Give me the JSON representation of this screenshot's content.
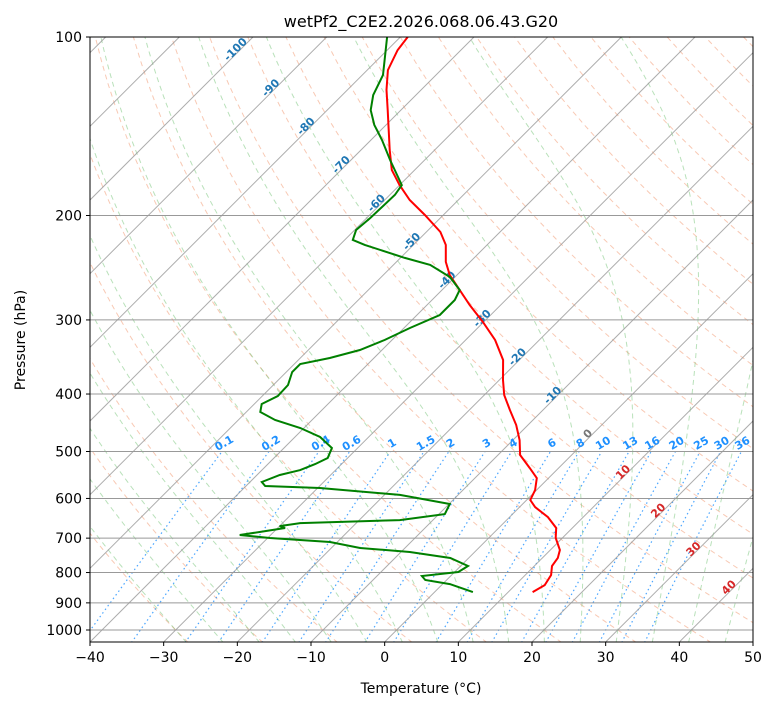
{
  "chart_data": {
    "type": "line",
    "title": "wetPf2_C2E2.2026.068.06.43.G20",
    "xlabel": "Temperature (°C)",
    "ylabel": "Pressure (hPa)",
    "xlim": [
      -40,
      50
    ],
    "ylim": [
      1047,
      100
    ],
    "x_ticks": [
      "−40",
      "−30",
      "−20",
      "−10",
      "0",
      "10",
      "20",
      "30",
      "40",
      "50"
    ],
    "x_tick_values": [
      -40,
      -30,
      -20,
      -10,
      0,
      10,
      20,
      30,
      40,
      50
    ],
    "y_ticks": [
      "100",
      "200",
      "300",
      "400",
      "500",
      "600",
      "700",
      "800",
      "900",
      "1000"
    ],
    "y_tick_values": [
      100,
      200,
      300,
      400,
      500,
      600,
      700,
      800,
      900,
      1000
    ],
    "grid": true,
    "isotherm_labels": [
      "-100",
      "-90",
      "-80",
      "-70",
      "-60",
      "-50",
      "-40",
      "-30",
      "-20",
      "-10",
      "0",
      "10",
      "20",
      "30",
      "40"
    ],
    "isotherm_label_values": [
      -100,
      -90,
      -80,
      -70,
      -60,
      -50,
      -40,
      -30,
      -20,
      -10,
      0,
      10,
      20,
      30,
      40
    ],
    "mixing_ratio_labels": [
      "0.1",
      "0.2",
      "0.4",
      "0.6",
      "1",
      "1.5",
      "2",
      "3",
      "4",
      "6",
      "8",
      "10",
      "13",
      "16",
      "20",
      "25",
      "30",
      "36"
    ],
    "mixing_ratio_values": [
      0.1,
      0.2,
      0.4,
      0.6,
      1,
      1.5,
      2,
      3,
      4,
      6,
      8,
      10,
      13,
      16,
      20,
      25,
      30,
      36
    ],
    "series": [
      {
        "name": "temperature",
        "color": "#ff0000",
        "p": [
          100,
          105.2,
          113.7,
          122.8,
          132.8,
          155.1,
          167.6,
          177.7,
          188.3,
          199.6,
          213.2,
          224.2,
          239.5,
          251.9,
          267.1,
          283.1,
          302.4,
          324.3,
          350.5,
          378.8,
          401.5,
          425.6,
          451.1,
          478.3,
          506.9,
          533.3,
          554.4,
          580.8,
          603.7,
          620.4,
          645.0,
          672.9,
          699.6,
          733.0,
          756.1,
          780.0,
          807.8,
          840.1,
          863.0
        ],
        "t": [
          -79.0,
          -78.6,
          -77.2,
          -74.7,
          -71.8,
          -66.1,
          -63.1,
          -60.0,
          -56.6,
          -52.5,
          -48.1,
          -45.6,
          -43.3,
          -41.0,
          -37.6,
          -34.2,
          -30.1,
          -26.0,
          -22.2,
          -19.5,
          -17.3,
          -14.5,
          -11.6,
          -9.1,
          -7.0,
          -3.9,
          -1.6,
          -0.2,
          0.5,
          2.1,
          5.2,
          7.8,
          9.1,
          11.3,
          12.1,
          12.4,
          13.5,
          14.0,
          13.3
        ]
      },
      {
        "name": "dewpoint",
        "color": "#008000",
        "p": [
          100,
          115.9,
          125.3,
          132.8,
          140.7,
          149.2,
          161.2,
          177.7,
          184.6,
          201.9,
          211.6,
          219.9,
          224.2,
          235.8,
          242.3,
          253.9,
          267.1,
          277.7,
          294.3,
          309.5,
          324.3,
          337.2,
          347.8,
          356.0,
          367.2,
          386.3,
          403.1,
          415.8,
          429.0,
          442.5,
          456.4,
          472.6,
          493.3,
          512.9,
          525.0,
          537.4,
          547.9,
          562.9,
          571.7,
          576.1,
          591.9,
          613.0,
          637.6,
          652.6,
          660.3,
          667.9,
          672.9,
          683.6,
          691.6,
          699.6,
          710.6,
          727.3,
          738.7,
          756.1,
          780.0,
          798.4,
          810.9,
          823.6,
          836.9,
          863.0
        ],
        "t": [
          -81.8,
          -77.2,
          -75.8,
          -74.1,
          -71.6,
          -68.5,
          -64.7,
          -59.7,
          -59.3,
          -59.5,
          -59.8,
          -58.9,
          -56.6,
          -49.4,
          -45.0,
          -40.7,
          -37.6,
          -36.9,
          -36.9,
          -39.2,
          -41.0,
          -43.0,
          -46.0,
          -49.2,
          -49.2,
          -48.0,
          -47.9,
          -49.0,
          -48.1,
          -45.0,
          -40.5,
          -36.6,
          -33.5,
          -32.7,
          -33.6,
          -34.8,
          -36.9,
          -38.4,
          -37.4,
          -29.7,
          -17.9,
          -9.9,
          -9.2,
          -14.5,
          -27.6,
          -30.0,
          -29.0,
          -31.9,
          -34.2,
          -29.7,
          -21.0,
          -16.1,
          -8.8,
          -2.5,
          1.0,
          0.5,
          -3.9,
          -2.9,
          1.0,
          5.2
        ]
      }
    ]
  }
}
